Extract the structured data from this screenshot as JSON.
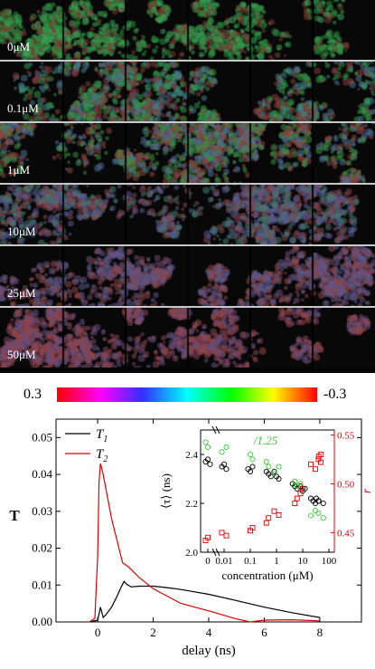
{
  "image_rows": [
    {
      "label": "0μM"
    },
    {
      "label": "0.1μM"
    },
    {
      "label": "1μM"
    },
    {
      "label": "10μM"
    },
    {
      "label": "25μM"
    },
    {
      "label": "50μM"
    }
  ],
  "colorbar": {
    "left_label": "0.3",
    "right_label": "-0.3"
  },
  "chart_data": [
    {
      "type": "line",
      "ylabel": "T",
      "xlabel": "delay (ns)",
      "xlim": [
        -1.5,
        9.5
      ],
      "ylim": [
        0,
        0.055
      ],
      "xticks": [
        "0",
        "2",
        "4",
        "6",
        "8"
      ],
      "yticks": [
        "0.00",
        "0.01",
        "0.02",
        "0.03",
        "0.04",
        "0.05"
      ],
      "legend_position": "top-left",
      "series": [
        {
          "name": "T",
          "subscript": "1",
          "color": "#000000",
          "x": [
            -0.3,
            0,
            0.1,
            0.2,
            0.3,
            0.5,
            0.7,
            0.85,
            0.95,
            1.05,
            1.2,
            1.5,
            2,
            2.5,
            3,
            4,
            5,
            6,
            7,
            8
          ],
          "y": [
            0,
            0.0005,
            0.004,
            0.0012,
            0.002,
            0.004,
            0.007,
            0.0095,
            0.011,
            0.0102,
            0.0095,
            0.0097,
            0.0097,
            0.0093,
            0.0088,
            0.0075,
            0.0058,
            0.004,
            0.0025,
            0.0012
          ]
        },
        {
          "name": "T",
          "subscript": "2",
          "color": "#dd0000",
          "x": [
            -0.3,
            -0.1,
            0,
            0.05,
            0.1,
            0.2,
            0.35,
            0.5,
            0.7,
            0.9,
            1.1,
            1.5,
            2,
            2.5,
            3,
            4,
            5,
            5.5,
            6,
            7,
            8
          ],
          "y": [
            0,
            0.001,
            0.018,
            0.038,
            0.043,
            0.04,
            0.034,
            0.028,
            0.022,
            0.016,
            0.015,
            0.012,
            0.009,
            0.007,
            0.005,
            0.003,
            0.0008,
            0,
            0.0005,
            0.0006,
            0.0003
          ]
        }
      ]
    },
    {
      "type": "scatter",
      "xlabel": "concentration (μM)",
      "ylabel": "⟨τ⟩ (ns)",
      "y2label": "r",
      "annotation": "/1.25",
      "xticks": [
        "0",
        "0.01",
        "0.1",
        "1",
        "10",
        "100"
      ],
      "yticks": [
        "2.0",
        "2.2",
        "2.4"
      ],
      "y2ticks": [
        "0.45",
        "0.50",
        "0.55"
      ],
      "ylim": [
        2.0,
        2.5
      ],
      "y2lim": [
        0.43,
        0.555
      ],
      "series": [
        {
          "name": "⟨τ⟩",
          "color": "#000000",
          "marker": "circle",
          "axis": "left",
          "points": [
            [
              0,
              2.37
            ],
            [
              0,
              2.38
            ],
            [
              0,
              2.36
            ],
            [
              0.01,
              2.35
            ],
            [
              0.01,
              2.36
            ],
            [
              0.01,
              2.34
            ],
            [
              0.1,
              2.34
            ],
            [
              0.1,
              2.33
            ],
            [
              0.1,
              2.35
            ],
            [
              0.5,
              2.33
            ],
            [
              0.5,
              2.32
            ],
            [
              0.5,
              2.31
            ],
            [
              1,
              2.33
            ],
            [
              1,
              2.31
            ],
            [
              1,
              2.3
            ],
            [
              5,
              2.28
            ],
            [
              5,
              2.27
            ],
            [
              5,
              2.26
            ],
            [
              10,
              2.27
            ],
            [
              10,
              2.25
            ],
            [
              10,
              2.26
            ],
            [
              25,
              2.22
            ],
            [
              25,
              2.21
            ],
            [
              25,
              2.2
            ],
            [
              40,
              2.22
            ],
            [
              40,
              2.21
            ],
            [
              50,
              2.2
            ],
            [
              50,
              2.21
            ]
          ]
        },
        {
          "name": "/1.25",
          "color": "#33cc33",
          "marker": "circle",
          "axis": "left",
          "points": [
            [
              0,
              2.45
            ],
            [
              0,
              2.43
            ],
            [
              0.01,
              2.43
            ],
            [
              0.01,
              2.41
            ],
            [
              0.1,
              2.4
            ],
            [
              0.1,
              2.38
            ],
            [
              0.5,
              2.37
            ],
            [
              0.5,
              2.35
            ],
            [
              1,
              2.35
            ],
            [
              1,
              2.32
            ],
            [
              5,
              2.29
            ],
            [
              5,
              2.27
            ],
            [
              10,
              2.28
            ],
            [
              10,
              2.26
            ],
            [
              25,
              2.17
            ],
            [
              25,
              2.15
            ],
            [
              40,
              2.16
            ],
            [
              50,
              2.14
            ]
          ]
        },
        {
          "name": "r",
          "color": "#dd0000",
          "marker": "square",
          "axis": "right",
          "points": [
            [
              0,
              0.442
            ],
            [
              0,
              0.445
            ],
            [
              0.01,
              0.447
            ],
            [
              0.01,
              0.45
            ],
            [
              0.1,
              0.452
            ],
            [
              0.1,
              0.455
            ],
            [
              0.5,
              0.46
            ],
            [
              0.5,
              0.465
            ],
            [
              1,
              0.468
            ],
            [
              1,
              0.472
            ],
            [
              5,
              0.48
            ],
            [
              5,
              0.485
            ],
            [
              10,
              0.49
            ],
            [
              10,
              0.495
            ],
            [
              25,
              0.515
            ],
            [
              25,
              0.52
            ],
            [
              40,
              0.525
            ],
            [
              40,
              0.522
            ],
            [
              50,
              0.528
            ],
            [
              50,
              0.53
            ]
          ]
        }
      ]
    }
  ]
}
